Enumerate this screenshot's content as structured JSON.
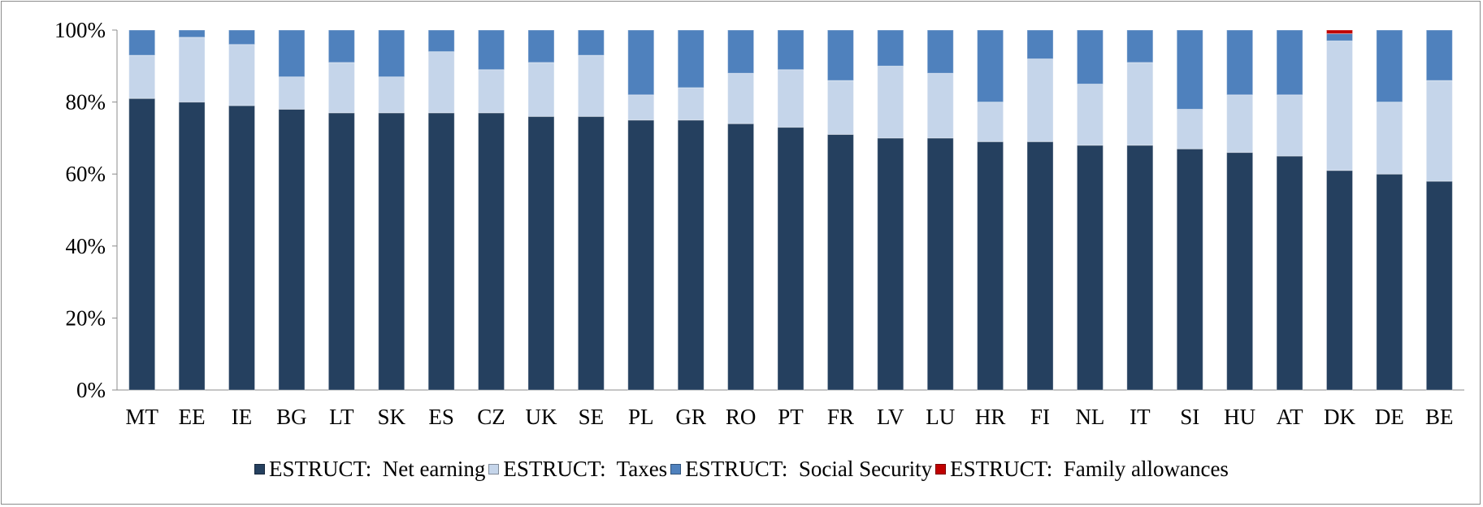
{
  "chart_data": {
    "type": "bar",
    "stacked": true,
    "title": "",
    "xlabel": "",
    "ylabel": "",
    "ylim": [
      0,
      100
    ],
    "yticks": [
      "0%",
      "20%",
      "40%",
      "60%",
      "80%",
      "100%"
    ],
    "categories": [
      "MT",
      "EE",
      "IE",
      "BG",
      "LT",
      "SK",
      "ES",
      "CZ",
      "UK",
      "SE",
      "PL",
      "GR",
      "RO",
      "PT",
      "FR",
      "LV",
      "LU",
      "HR",
      "FI",
      "NL",
      "IT",
      "SI",
      "HU",
      "AT",
      "DK",
      "DE",
      "BE"
    ],
    "series": [
      {
        "name": "ESTRUCT:  Net earning",
        "color": "#25405f",
        "values": [
          81,
          80,
          79,
          78,
          77,
          77,
          77,
          77,
          76,
          76,
          75,
          75,
          74,
          73,
          71,
          70,
          70,
          69,
          69,
          68,
          68,
          67,
          66,
          65,
          61,
          60,
          58
        ]
      },
      {
        "name": "ESTRUCT:  Taxes",
        "color": "#c5d5ea",
        "values": [
          12,
          18,
          17,
          9,
          14,
          10,
          17,
          12,
          15,
          17,
          7,
          9,
          14,
          16,
          15,
          20,
          18,
          11,
          23,
          17,
          23,
          11,
          16,
          17,
          36,
          20,
          28
        ]
      },
      {
        "name": "ESTRUCT:  Social Security",
        "color": "#4f81bd",
        "values": [
          7,
          2,
          4,
          13,
          9,
          13,
          6,
          11,
          9,
          7,
          18,
          16,
          12,
          11,
          14,
          10,
          12,
          20,
          8,
          15,
          9,
          22,
          18,
          18,
          2,
          20,
          14
        ]
      },
      {
        "name": "ESTRUCT:  Family allowances",
        "color": "#c00000",
        "values": [
          0,
          0,
          0,
          0,
          0,
          0,
          0,
          0,
          0,
          0,
          0,
          0,
          0,
          0,
          0,
          0,
          0,
          0,
          0,
          0,
          0,
          0,
          0,
          0,
          1,
          0,
          0
        ]
      }
    ],
    "grid": false,
    "legend_position": "bottom"
  }
}
